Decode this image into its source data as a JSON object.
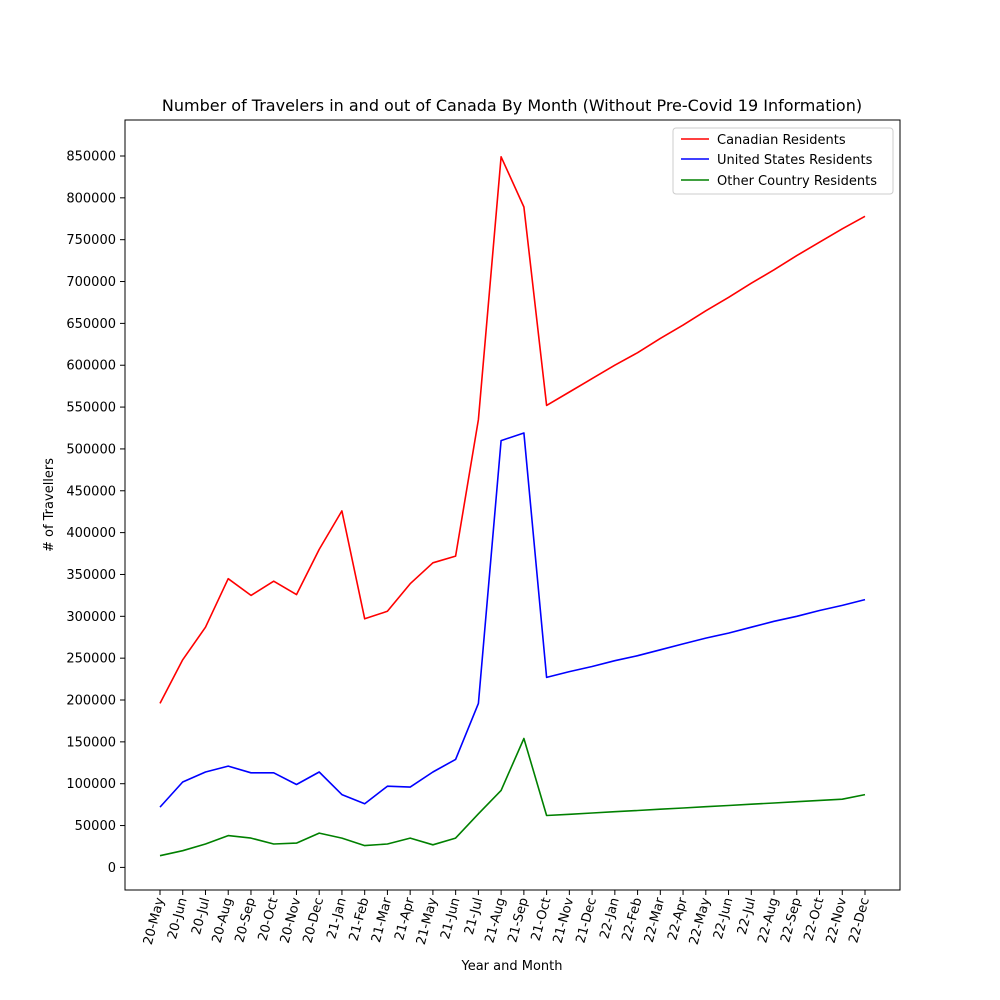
{
  "chart_data": {
    "type": "line",
    "title": "Number of Travelers in and out of Canada By Month (Without Pre-Covid 19 Information)",
    "xlabel": "Year and Month",
    "ylabel": "# of Travellers",
    "categories": [
      "20-May",
      "20-Jun",
      "20-Jul",
      "20-Aug",
      "20-Sep",
      "20-Oct",
      "20-Nov",
      "20-Dec",
      "21-Jan",
      "21-Feb",
      "21-Mar",
      "21-Apr",
      "21-May",
      "21-Jun",
      "21-Jul",
      "21-Aug",
      "21-Sep",
      "21-Oct",
      "21-Nov",
      "21-Dec",
      "22-Jan",
      "22-Feb",
      "22-Mar",
      "22-Apr",
      "22-May",
      "22-Jun",
      "22-Jul",
      "22-Aug",
      "22-Sep",
      "22-Oct",
      "22-Nov",
      "22-Dec"
    ],
    "ylim": [
      -27000,
      893000
    ],
    "yticks": [
      0,
      50000,
      100000,
      150000,
      200000,
      250000,
      300000,
      350000,
      400000,
      450000,
      500000,
      550000,
      600000,
      650000,
      700000,
      750000,
      800000,
      850000
    ],
    "grid": false,
    "legend_position": "top-right",
    "series": [
      {
        "name": "Canadian Residents",
        "color": "#ff0000",
        "values": [
          196000,
          248000,
          287000,
          345000,
          325000,
          342000,
          326000,
          380000,
          426000,
          297000,
          306000,
          339000,
          364000,
          372000,
          535000,
          849000,
          789000,
          552000,
          568000,
          584000,
          600000,
          615000,
          632000,
          648000,
          665000,
          681000,
          698000,
          714000,
          731000,
          747000,
          763000,
          778000
        ]
      },
      {
        "name": "United States Residents",
        "color": "#0000ff",
        "values": [
          72000,
          102000,
          114000,
          121000,
          113000,
          113000,
          99000,
          114000,
          87000,
          76000,
          97000,
          96000,
          114000,
          129000,
          196000,
          510000,
          519000,
          227000,
          234000,
          240000,
          247000,
          253000,
          260000,
          267000,
          274000,
          280000,
          287000,
          294000,
          300000,
          307000,
          313000,
          320000
        ]
      },
      {
        "name": "Other Country Residents",
        "color": "#008000",
        "values": [
          14000,
          20000,
          28000,
          38000,
          35000,
          28000,
          29000,
          41000,
          35000,
          26000,
          28000,
          35000,
          27000,
          35000,
          64000,
          92000,
          154000,
          62000,
          63500,
          65000,
          66500,
          68000,
          69500,
          71000,
          72500,
          74000,
          75500,
          77000,
          78500,
          80000,
          81500,
          87000
        ]
      }
    ]
  }
}
